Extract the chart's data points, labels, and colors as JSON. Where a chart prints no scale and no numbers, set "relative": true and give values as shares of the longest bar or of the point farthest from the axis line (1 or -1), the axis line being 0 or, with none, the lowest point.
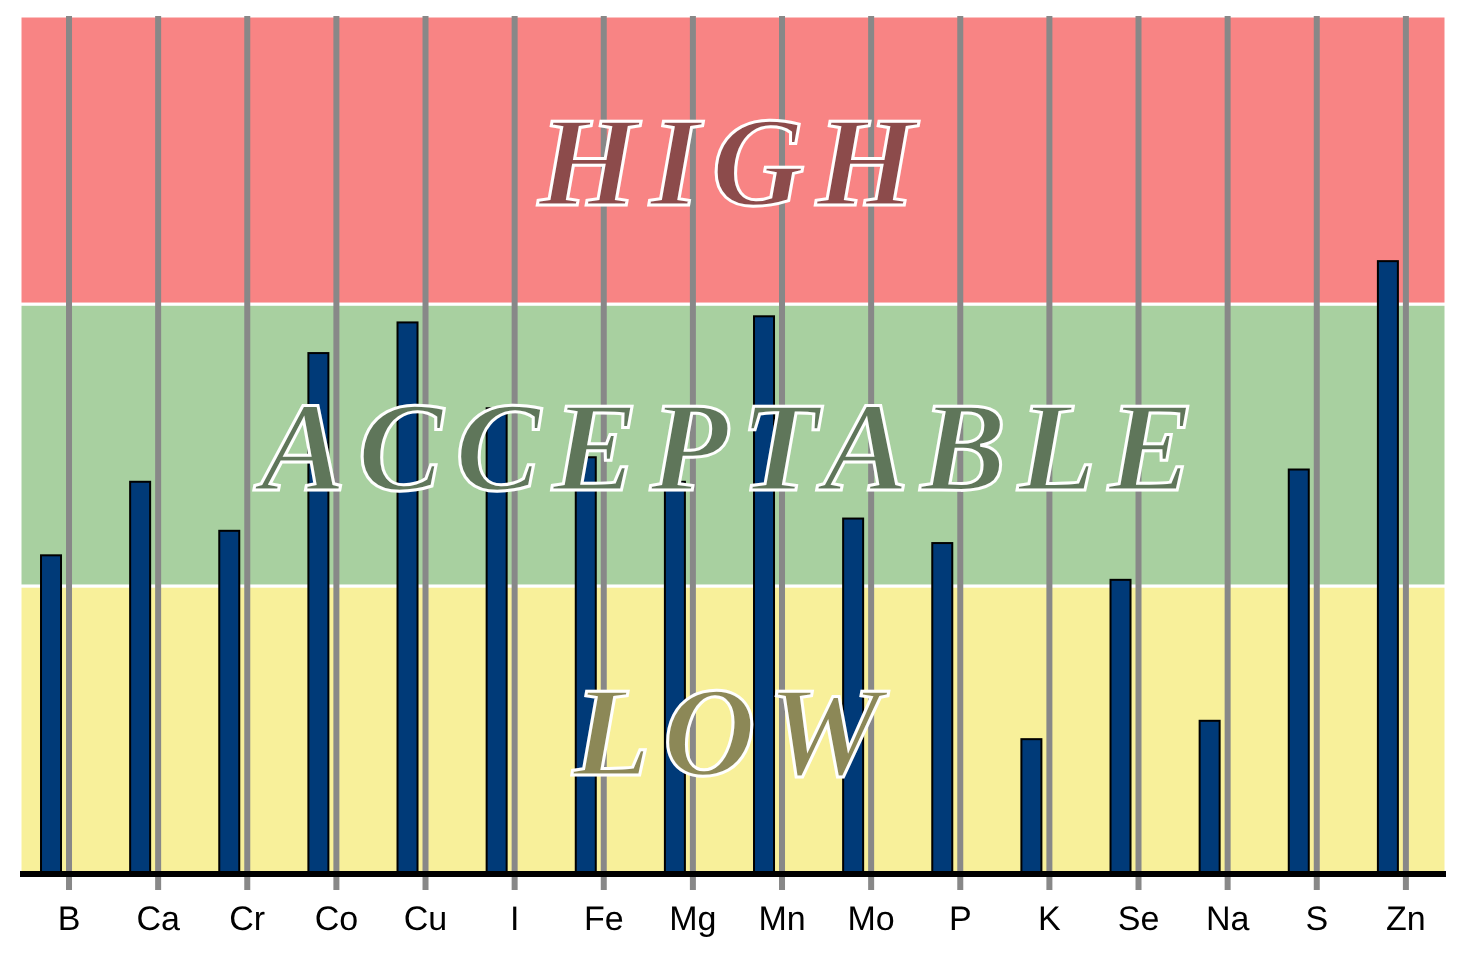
{
  "chart_data": {
    "type": "bar",
    "relative": true,
    "grid": "x",
    "color": "#003a78",
    "categories": [
      "B",
      "Ca",
      "Cr",
      "Co",
      "Cu",
      "I",
      "Fe",
      "Mg",
      "Mn",
      "Mo",
      "P",
      "K",
      "Se",
      "Na",
      "S",
      "Zn"
    ],
    "values": [
      0.52,
      0.64,
      0.56,
      0.85,
      0.9,
      0.76,
      0.68,
      0.64,
      0.91,
      0.58,
      0.54,
      0.22,
      0.48,
      0.25,
      0.66,
      1
    ],
    "bands": [
      {
        "axis": "y",
        "from": 0,
        "to": 0.47,
        "label": "LOW",
        "color": "#f8f09a"
      },
      {
        "axis": "y",
        "from": 0.47,
        "to": 0.93,
        "label": "ACCEPTABLE",
        "color": "#a8d0a0"
      },
      {
        "axis": "y",
        "from": 0.93,
        "to": 1.4,
        "label": "HIGH",
        "color": "#f88484"
      }
    ]
  }
}
